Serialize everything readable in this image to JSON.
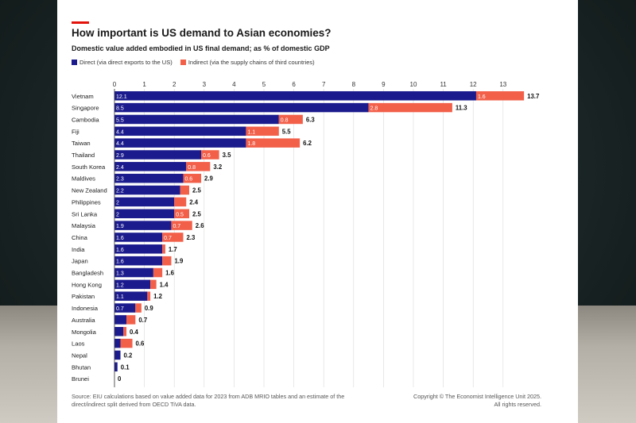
{
  "title": "How important is US demand to Asian economies?",
  "subtitle": "Domestic value added embodied in US final demand; as % of domestic GDP",
  "legend": {
    "direct": "Direct (via direct exports to the US)",
    "indirect": "Indirect (via the supply chains of third countries)"
  },
  "colors": {
    "direct": "#1b1b8e",
    "indirect": "#f2604a",
    "accent": "#e3120b"
  },
  "source": "Source: EIU calculations based on value added data for 2023 from ADB MRIO tables and an estimate of the direct/indirect split derived from OECD TiVA data.",
  "copyright_line1": "Copyright © The Economist Intelligence Unit 2025.",
  "copyright_line2": "All rights reserved.",
  "chart_data": {
    "type": "bar",
    "orientation": "horizontal",
    "stacked": true,
    "title": "How important is US demand to Asian economies?",
    "xlim": [
      0,
      13.9
    ],
    "ticks": [
      0,
      1,
      2,
      3,
      4,
      5,
      6,
      7,
      8,
      9,
      10,
      11,
      12,
      13
    ],
    "categories": [
      "Vietnam",
      "Singapore",
      "Cambodia",
      "Fiji",
      "Taiwan",
      "Thailand",
      "South Korea",
      "Maldives",
      "New Zealand",
      "Philippines",
      "Sri Lanka",
      "Malaysia",
      "China",
      "India",
      "Japan",
      "Bangladesh",
      "Hong Kong",
      "Pakistan",
      "Indonesia",
      "Australia",
      "Mongolia",
      "Laos",
      "Nepal",
      "Bhutan",
      "Brunei"
    ],
    "series": [
      {
        "name": "Direct (via direct exports to the US)",
        "values": [
          12.1,
          8.5,
          5.5,
          4.4,
          4.4,
          2.9,
          2.4,
          2.3,
          2.2,
          2,
          2,
          1.9,
          1.6,
          1.6,
          1.6,
          1.3,
          1.2,
          1.1,
          0.7,
          0.4,
          0.3,
          0.2,
          0.2,
          0.1,
          0
        ],
        "labels": [
          "12.1",
          "8.5",
          "5.5",
          "4.4",
          "4.4",
          "2.9",
          "2.4",
          "2.3",
          "2.2",
          "2",
          "2",
          "1.9",
          "1.6",
          "1.6",
          "1.6",
          "1.3",
          "1.2",
          "1.1",
          "0.7",
          "",
          "",
          "",
          "",
          "",
          ""
        ]
      },
      {
        "name": "Indirect (via the supply chains of third countries)",
        "values": [
          1.6,
          2.8,
          0.8,
          1.1,
          1.8,
          0.6,
          0.8,
          0.6,
          0.3,
          0.4,
          0.5,
          0.7,
          0.7,
          0.1,
          0.3,
          0.3,
          0.2,
          0.1,
          0.2,
          0.3,
          0.1,
          0.4,
          0,
          0,
          0
        ],
        "labels": [
          "1.6",
          "2.8",
          "0.8",
          "1.1",
          "1.8",
          "0.6",
          "0.8",
          "0.6",
          "",
          "",
          "0.5",
          "0.7",
          "0.7",
          "",
          "",
          "",
          "",
          "",
          "",
          "",
          "",
          "",
          "",
          "",
          ""
        ]
      }
    ],
    "totals": [
      "13.7",
      "11.3",
      "6.3",
      "5.5",
      "6.2",
      "3.5",
      "3.2",
      "2.9",
      "2.5",
      "2.4",
      "2.5",
      "2.6",
      "2.3",
      "1.7",
      "1.9",
      "1.6",
      "1.4",
      "1.2",
      "0.9",
      "0.7",
      "0.4",
      "0.6",
      "0.2",
      "0.1",
      "0"
    ]
  }
}
